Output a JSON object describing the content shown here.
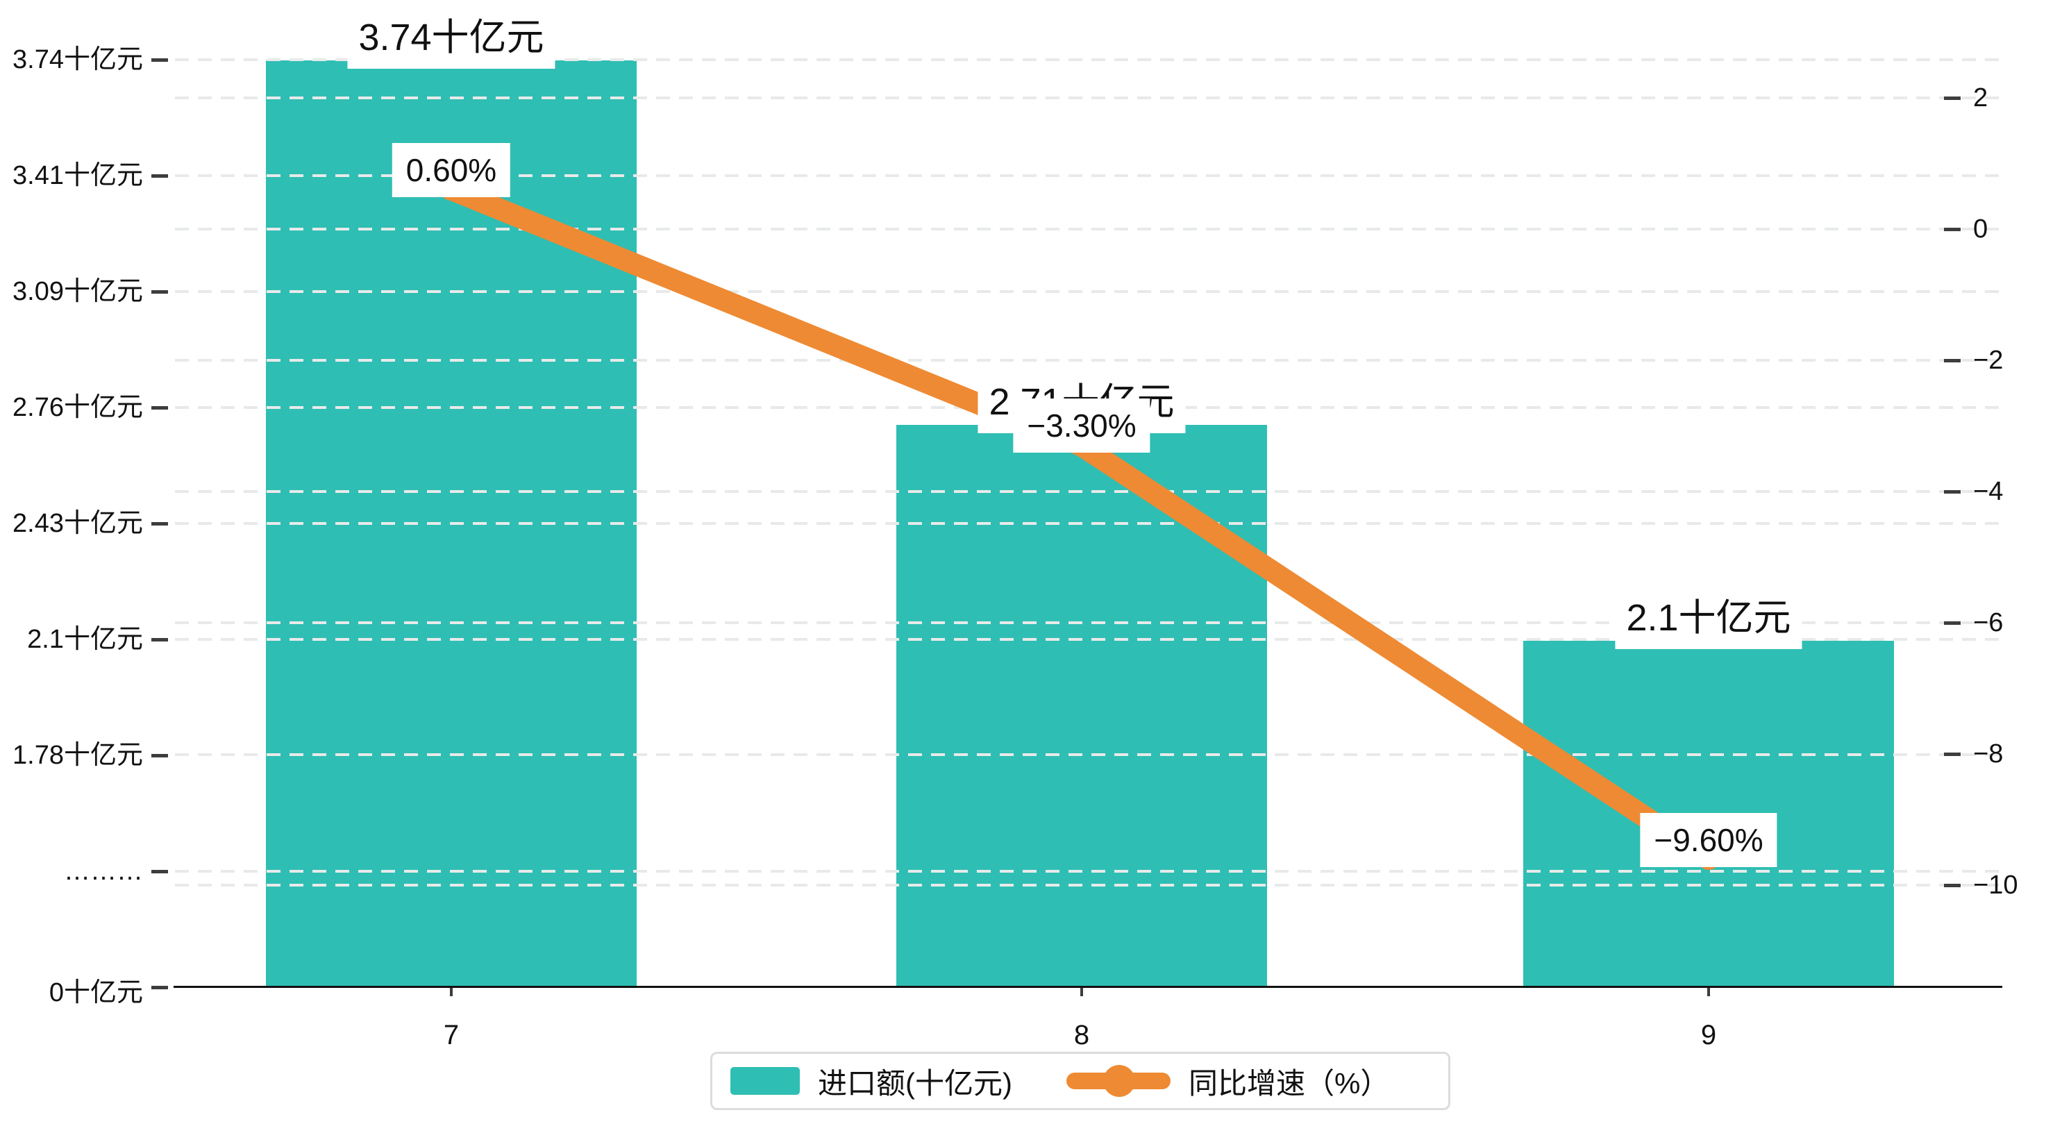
{
  "chart_data": {
    "type": "bar",
    "title": "",
    "categories": [
      "7",
      "8",
      "9"
    ],
    "series": [
      {
        "name": "进口额(十亿元)",
        "type": "bar",
        "color": "#2FBEB3",
        "values": [
          3.74,
          2.71,
          2.1
        ],
        "unit": "十亿元",
        "data_labels": [
          "3.74十亿元",
          "2.71十亿元",
          "2.1十亿元"
        ]
      },
      {
        "name": "同比增速（%）",
        "type": "line",
        "color": "#EE8A33",
        "values": [
          0.6,
          -3.3,
          -9.6
        ],
        "unit": "%",
        "data_labels": [
          "0.60%",
          "−3.30%",
          "−9.60%"
        ]
      }
    ],
    "left_axis": {
      "unit": "十亿元",
      "tick_labels": [
        "3.74十亿元",
        "3.41十亿元",
        "3.09十亿元",
        "2.76十亿元",
        "2.43十亿元",
        "2.1十亿元",
        "1.78十亿元",
        "………",
        "0十亿元"
      ]
    },
    "right_axis": {
      "tick_labels": [
        "2",
        "0",
        "−2",
        "−4",
        "−6",
        "−8",
        "−10"
      ]
    },
    "x_axis": {
      "tick_labels": [
        "7",
        "8",
        "9"
      ]
    },
    "grid": "dashed horizontal gridlines",
    "legend_position": "bottom-center"
  },
  "legend": {
    "items": [
      {
        "label": "进口额(十亿元)",
        "color": "#2FBEB3",
        "marker": "square"
      },
      {
        "label": "同比增速（%）",
        "color": "#EE8A33",
        "marker": "line-dot"
      }
    ]
  },
  "colors": {
    "bar": "#2FBEB3",
    "line": "#EE8A33",
    "grid": "#e8eaea",
    "axis": "#111111",
    "text": "#111111",
    "legend_border": "#dcdcdc",
    "background": "#ffffff"
  }
}
